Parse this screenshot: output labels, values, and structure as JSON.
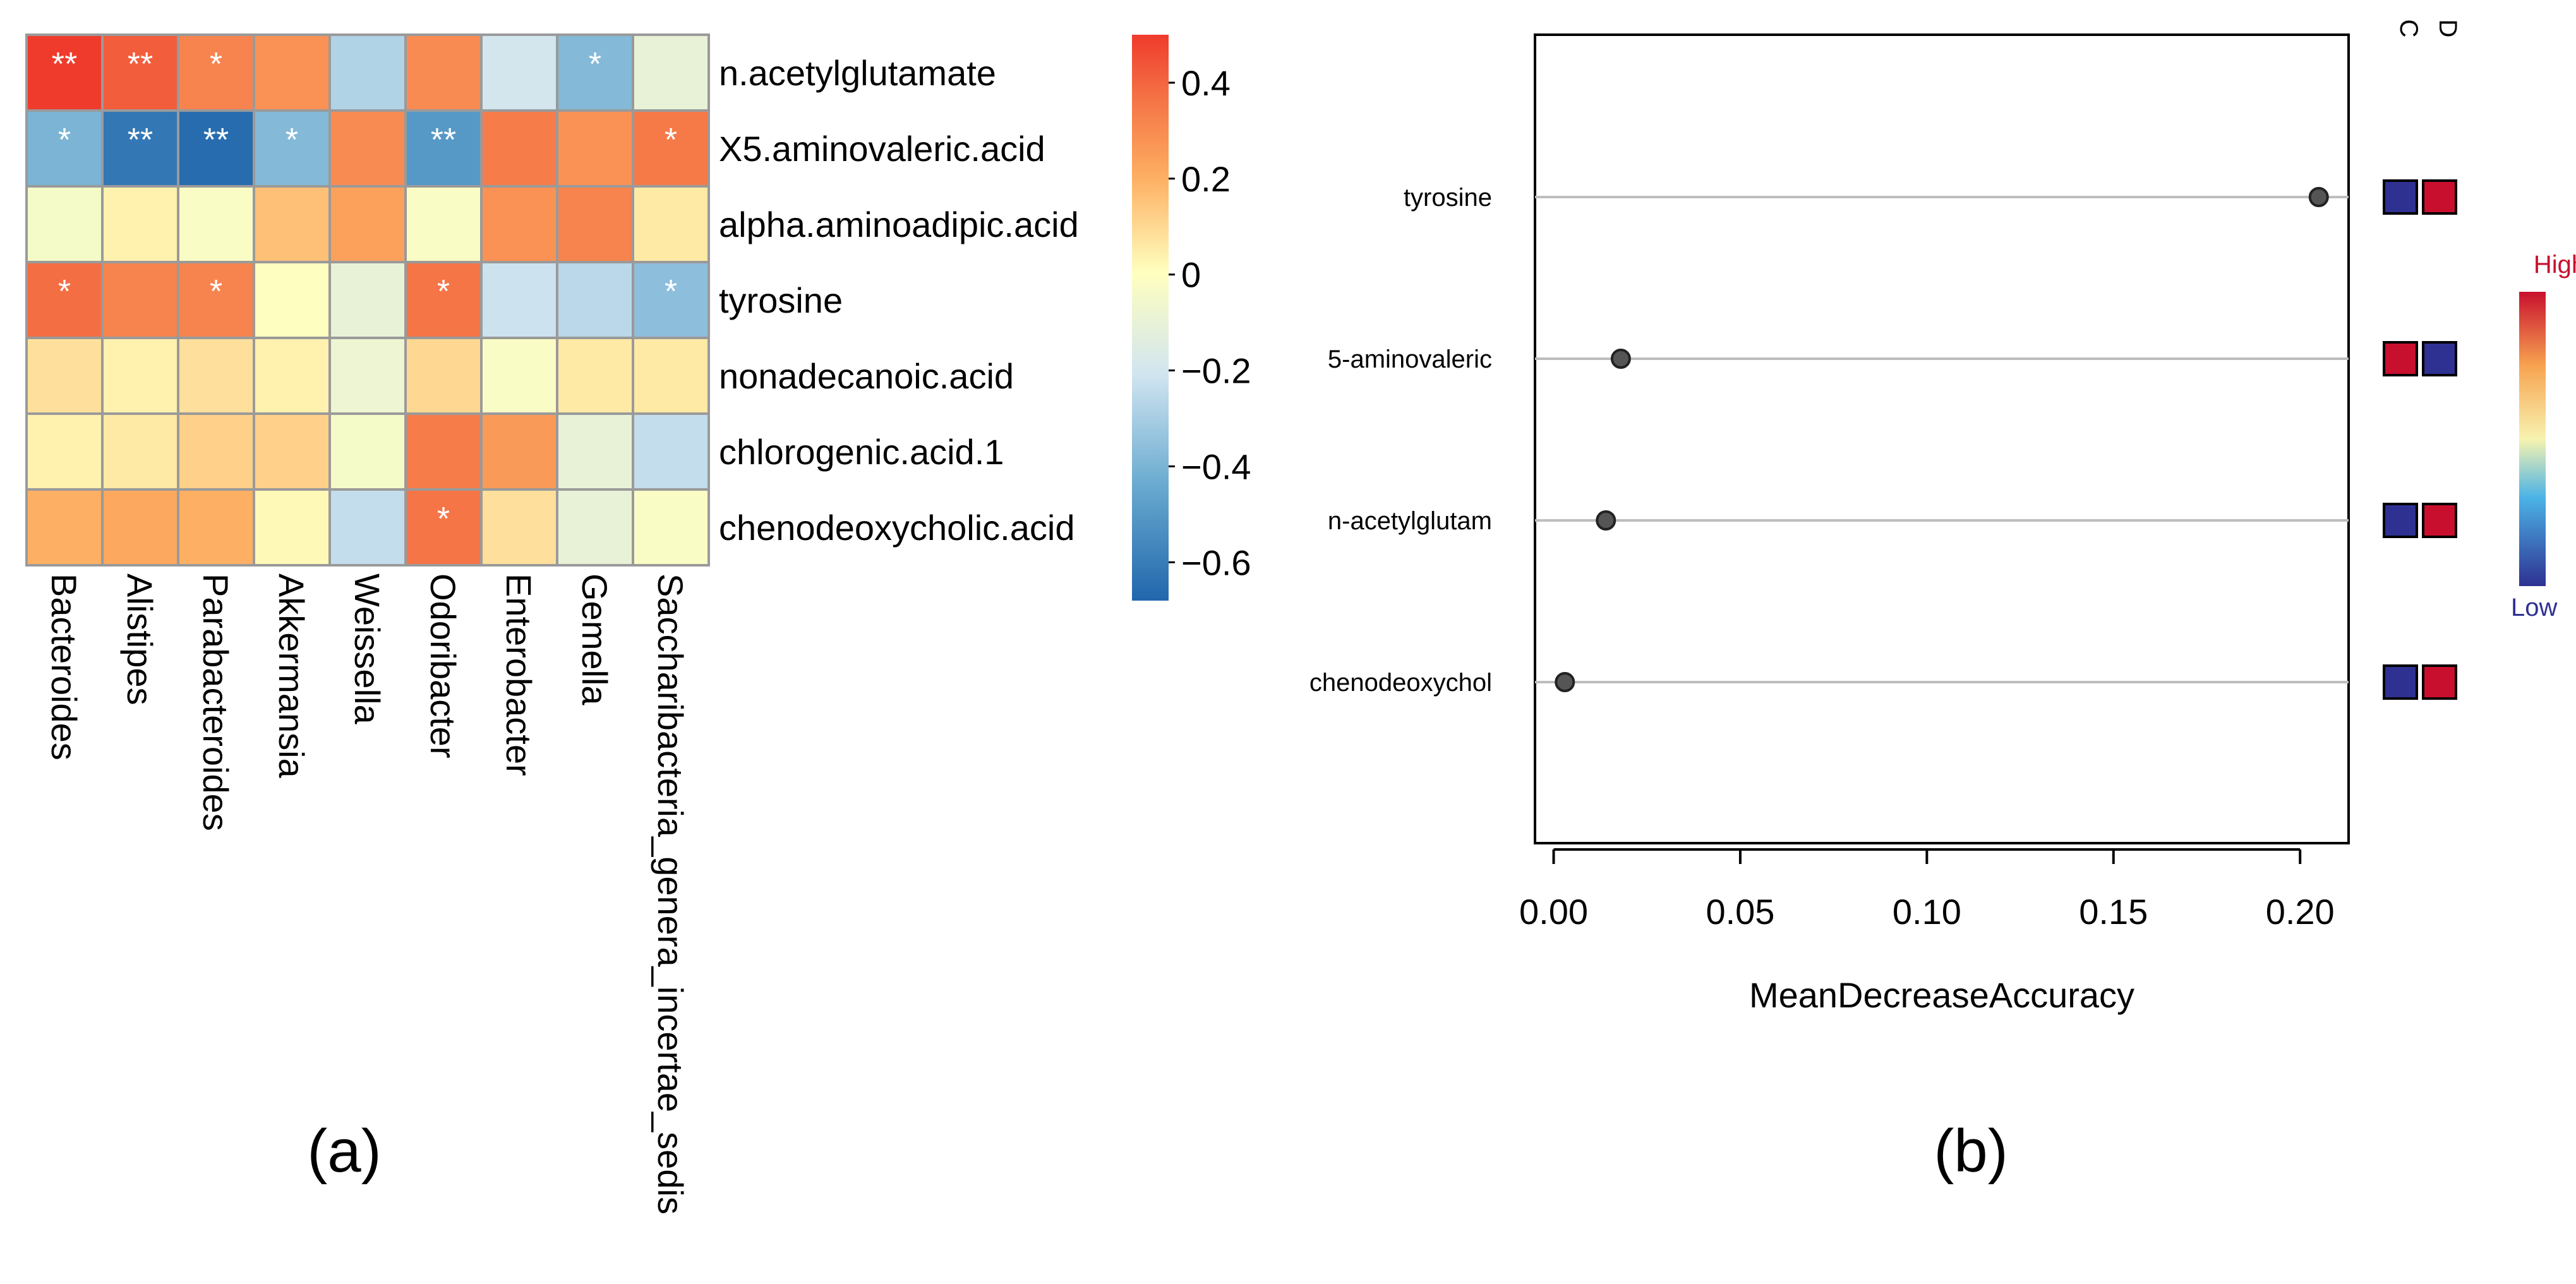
{
  "chart_data": [
    {
      "type": "heatmap",
      "panel_label": "(a)",
      "rows": [
        "n.acetylglutamate",
        "X5.aminovaleric.acid",
        "alpha.aminoadipic.acid",
        "tyrosine",
        "nonadecanoic.acid",
        "chlorogenic.acid.1",
        "chenodeoxycholic.acid"
      ],
      "columns": [
        "Bacteroides",
        "Alistipes",
        "Parabacteroides",
        "Akkermansia",
        "Weissella",
        "Odoribacter",
        "Enterobacter",
        "Gemella",
        "Saccharibacteria_genera_incertae_sedis"
      ],
      "values": [
        [
          0.5,
          0.42,
          0.32,
          0.28,
          -0.28,
          0.3,
          -0.2,
          -0.38,
          -0.1
        ],
        [
          -0.4,
          -0.62,
          -0.66,
          -0.38,
          0.3,
          -0.5,
          0.34,
          0.28,
          0.35
        ],
        [
          -0.04,
          0.04,
          -0.02,
          0.16,
          0.24,
          -0.02,
          0.28,
          0.32,
          0.06
        ],
        [
          0.38,
          0.32,
          0.32,
          0.0,
          -0.1,
          0.36,
          -0.22,
          -0.26,
          -0.36
        ],
        [
          0.08,
          0.04,
          0.08,
          0.04,
          -0.08,
          0.1,
          -0.02,
          0.06,
          0.06
        ],
        [
          0.04,
          0.06,
          0.12,
          0.12,
          -0.04,
          0.34,
          0.26,
          -0.1,
          -0.24
        ],
        [
          0.2,
          0.22,
          0.2,
          0.02,
          -0.24,
          0.36,
          0.08,
          -0.1,
          -0.02
        ]
      ],
      "significance": [
        [
          "**",
          "**",
          "*",
          "",
          "",
          "",
          "",
          "*",
          ""
        ],
        [
          "*",
          "**",
          "**",
          "*",
          "",
          "**",
          "",
          "",
          "*"
        ],
        [
          "",
          "",
          "",
          "",
          "",
          "",
          "",
          "",
          ""
        ],
        [
          "*",
          "",
          "*",
          "",
          "",
          "*",
          "",
          "",
          "*"
        ],
        [
          "",
          "",
          "",
          "",
          "",
          "",
          "",
          "",
          ""
        ],
        [
          "",
          "",
          "",
          "",
          "",
          "",
          "",
          "",
          ""
        ],
        [
          "",
          "",
          "",
          "",
          "",
          "*",
          "",
          "",
          ""
        ]
      ],
      "color_scale": {
        "range": [
          -0.68,
          0.5
        ],
        "ticks": [
          0.4,
          0.2,
          0,
          -0.2,
          -0.4,
          -0.6
        ],
        "tick_labels": [
          "0.4",
          "0.2",
          "0",
          "−0.2",
          "−0.4",
          "−0.6"
        ],
        "colors": [
          "#2166ac",
          "#67a9cf",
          "#d1e5f0",
          "#ffffbf",
          "#fdae61",
          "#f46d43",
          "#ef3b2c"
        ]
      }
    },
    {
      "type": "scatter",
      "subtype": "dot_plot",
      "panel_label": "(b)",
      "categories": [
        "tyrosine",
        "5-aminovaleric",
        "n-acetylglutam",
        "chenodeoxychol"
      ],
      "values": [
        0.205,
        0.018,
        0.014,
        0.003
      ],
      "xlabel": "MeanDecreaseAccuracy",
      "xlim": [
        -0.005,
        0.213
      ],
      "xticks": [
        0.0,
        0.05,
        0.1,
        0.15,
        0.2
      ],
      "xtick_labels": [
        "0.00",
        "0.05",
        "0.10",
        "0.15",
        "0.20"
      ],
      "group_labels": [
        "C",
        "D"
      ],
      "group_levels": [
        [
          "Low",
          "High"
        ],
        [
          "High",
          "Low"
        ],
        [
          "Low",
          "High"
        ],
        [
          "Low",
          "High"
        ]
      ],
      "legend": {
        "high_label": "High",
        "low_label": "Low",
        "high_color": "#c8102e",
        "low_color": "#2e3192"
      }
    }
  ]
}
